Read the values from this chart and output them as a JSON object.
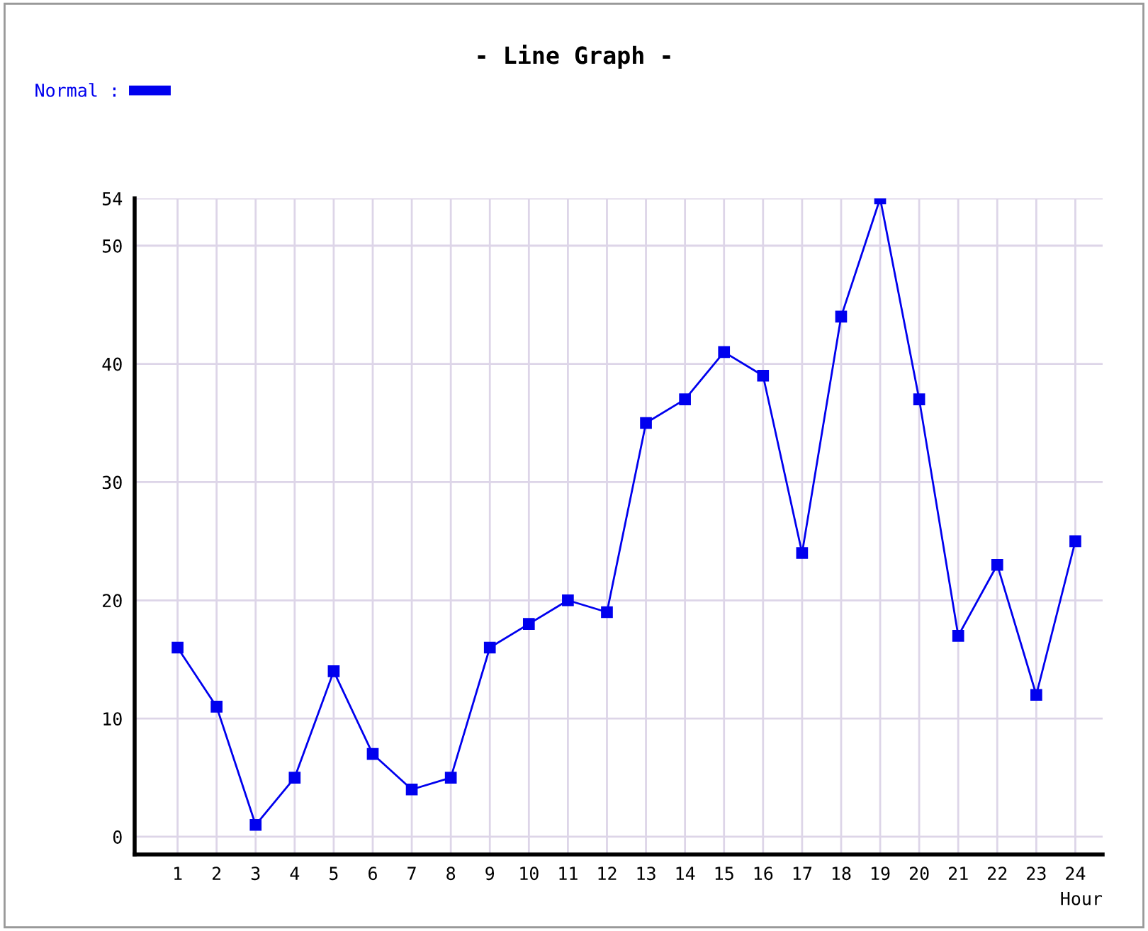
{
  "chart_data": {
    "type": "line",
    "title": "- Line Graph -",
    "xlabel": "Hour",
    "categories": [
      "1",
      "2",
      "3",
      "4",
      "5",
      "6",
      "7",
      "8",
      "9",
      "10",
      "11",
      "12",
      "13",
      "14",
      "15",
      "16",
      "17",
      "18",
      "19",
      "20",
      "21",
      "22",
      "23",
      "24"
    ],
    "series": [
      {
        "name": "Normal :",
        "color": "#0000ee",
        "values": [
          16,
          11,
          1,
          5,
          14,
          7,
          4,
          5,
          16,
          18,
          20,
          19,
          35,
          37,
          41,
          39,
          24,
          44,
          54,
          37,
          17,
          23,
          12,
          25
        ]
      }
    ],
    "ylim": [
      -1.5,
      54
    ],
    "yticks": [
      0,
      10,
      20,
      30,
      40,
      50,
      54
    ],
    "grid": true,
    "legend": "top left",
    "marker": "square",
    "line_style": "solid"
  }
}
